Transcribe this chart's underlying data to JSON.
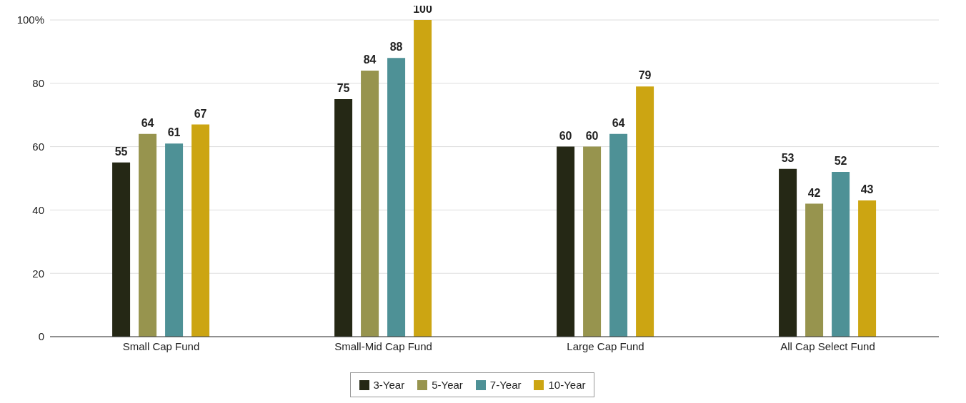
{
  "chart_data": {
    "type": "bar",
    "categories": [
      "Small Cap Fund",
      "Small-Mid Cap Fund",
      "Large Cap Fund",
      "All Cap Select Fund"
    ],
    "series": [
      {
        "name": "3-Year",
        "color": "#252815",
        "values": [
          55,
          75,
          60,
          53
        ]
      },
      {
        "name": "5-Year",
        "color": "#97944e",
        "values": [
          64,
          84,
          60,
          42
        ]
      },
      {
        "name": "7-Year",
        "color": "#4e9196",
        "values": [
          61,
          88,
          64,
          52
        ]
      },
      {
        "name": "10-Year",
        "color": "#cca512",
        "values": [
          67,
          100,
          79,
          43
        ]
      }
    ],
    "ylim": [
      0,
      100
    ],
    "yticks": [
      0,
      20,
      40,
      60,
      80,
      {
        "value": 100,
        "label": "100%"
      }
    ],
    "grid": "y",
    "legend": "bottom",
    "data_labels": true
  }
}
